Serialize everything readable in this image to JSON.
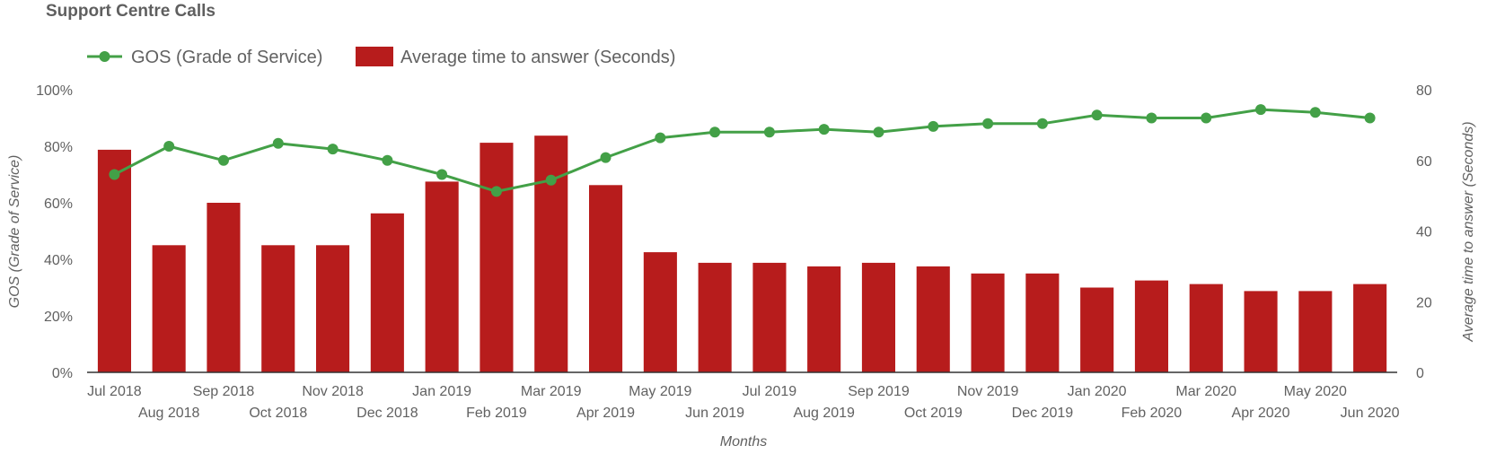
{
  "chart_data": {
    "title": "Support Centre Calls",
    "type": "bar",
    "categories": [
      "Jul 2018",
      "Aug 2018",
      "Sep 2018",
      "Oct 2018",
      "Nov 2018",
      "Dec 2018",
      "Jan 2019",
      "Feb 2019",
      "Mar 2019",
      "Apr 2019",
      "May 2019",
      "Jun 2019",
      "Jul 2019",
      "Aug 2019",
      "Sep 2019",
      "Oct 2019",
      "Nov 2019",
      "Dec 2019",
      "Jan 2020",
      "Feb 2020",
      "Mar 2020",
      "Apr 2020",
      "May 2020",
      "Jun 2020"
    ],
    "series": [
      {
        "name": "GOS (Grade of Service)",
        "type": "line",
        "axis": "left",
        "color": "#43a047",
        "values": [
          70,
          80,
          75,
          81,
          79,
          75,
          70,
          64,
          68,
          76,
          83,
          85,
          85,
          86,
          85,
          87,
          88,
          88,
          91,
          90,
          90,
          93,
          92,
          90
        ]
      },
      {
        "name": "Average time to answer (Seconds)",
        "type": "bar",
        "axis": "right",
        "color": "#b71c1c",
        "values": [
          63,
          36,
          48,
          36,
          36,
          45,
          54,
          65,
          67,
          53,
          34,
          31,
          31,
          30,
          31,
          30,
          28,
          28,
          24,
          26,
          25,
          23,
          23,
          25
        ]
      }
    ],
    "xlabel": "Months",
    "ylabel_left": "GOS (Grade of Service)",
    "ylabel_right": "Average time to answer (Seconds)",
    "ylim_left": [
      0,
      100
    ],
    "ylim_right": [
      0,
      80
    ],
    "yticks_left": [
      "0%",
      "20%",
      "40%",
      "60%",
      "80%",
      "100%"
    ],
    "yticks_right": [
      "0",
      "20",
      "40",
      "60",
      "80"
    ],
    "grid": false,
    "legend_position": "top-left"
  }
}
